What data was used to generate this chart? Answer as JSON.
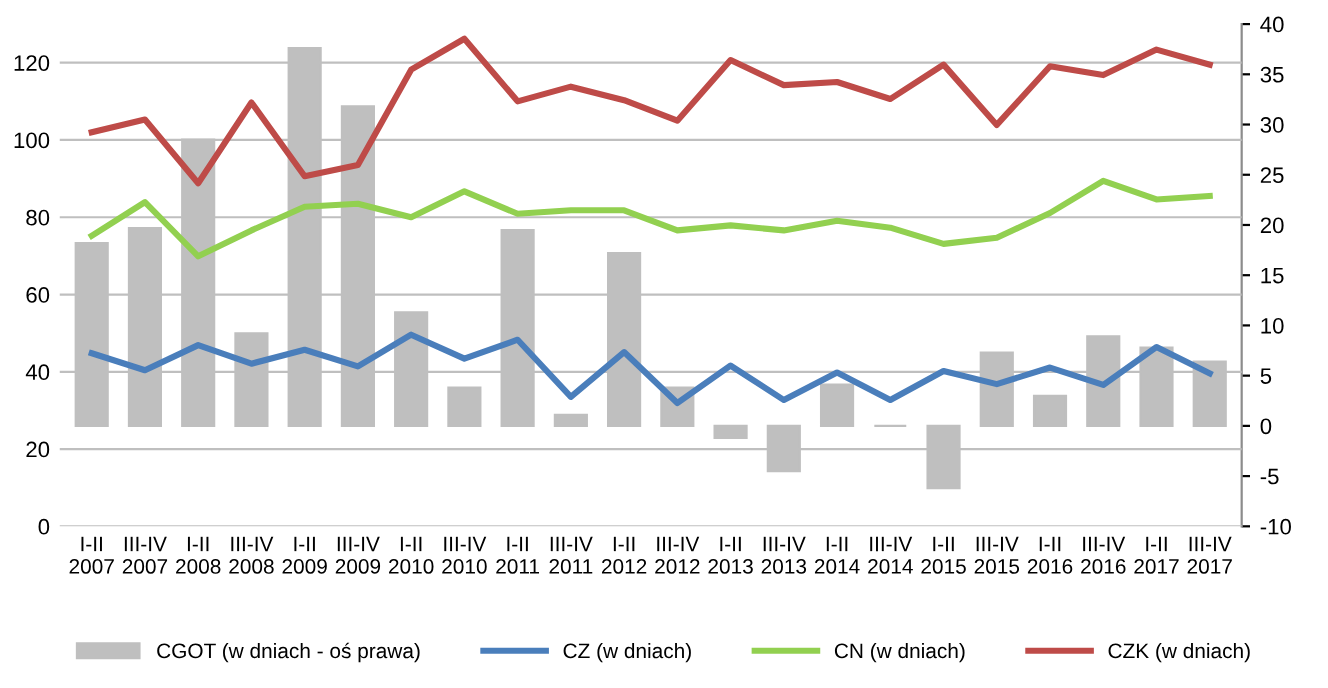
{
  "chart_data": {
    "type": "line",
    "categories": [
      "I-II\n2007",
      "III-IV\n2007",
      "I-II\n2008",
      "III-IV\n2008",
      "I-II\n2009",
      "III-IV\n2009",
      "I-II\n2010",
      "III-IV\n2010",
      "I-II\n2011",
      "III-IV\n2011",
      "I-II\n2012",
      "III-IV\n2012",
      "I-II\n2013",
      "III-IV\n2013",
      "I-II\n2014",
      "III-IV\n2014",
      "I-II\n2015",
      "III-IV\n2015",
      "I-II\n2016",
      "III-IV\n2016",
      "I-II\n2017",
      "III-IV\n2017"
    ],
    "series": [
      {
        "name": "CGOT (w dniach - oś prawa)",
        "type": "bar",
        "axis": "y2",
        "color": "#bfbfbf",
        "values": [
          18.2,
          19.7,
          28.5,
          9.2,
          37.6,
          31.8,
          11.3,
          3.8,
          19.5,
          1.1,
          17.2,
          3.8,
          -1.2,
          -4.5,
          4.1,
          0,
          -6.2,
          7.3,
          3.0,
          8.9,
          7.8,
          6.4
        ]
      },
      {
        "name": "CZ (w dniach)",
        "color": "#4a7ebb",
        "values": [
          44.8,
          40.4,
          46.9,
          42.1,
          45.7,
          41.4,
          49.6,
          43.4,
          48.3,
          33.5,
          45.1,
          31.9,
          41.6,
          32.7,
          39.8,
          32.7,
          40.2,
          36.8,
          41.1,
          36.6,
          46.4,
          39.6
        ]
      },
      {
        "name": "CN (w dniach)",
        "color": "#92d050",
        "values": [
          75.2,
          83.9,
          69.9,
          76.6,
          82.7,
          83.5,
          80,
          86.7,
          80.9,
          81.8,
          81.8,
          76.6,
          77.9,
          76.6,
          79.1,
          77.3,
          73.1,
          74.7,
          81.1,
          89.4,
          84.6,
          85.5
        ]
      },
      {
        "name": "CZK (w dniach)",
        "color": "#be4b48",
        "values": [
          102,
          105.3,
          88.8,
          109.7,
          90.6,
          93.5,
          118.2,
          126.2,
          110,
          113.8,
          110.3,
          105,
          120.7,
          114.2,
          115,
          110.6,
          119.5,
          103.9,
          119.1,
          116.8,
          123.4,
          119.5
        ]
      }
    ],
    "ylim": [
      0,
      130
    ],
    "yticks": [
      0,
      20,
      40,
      60,
      80,
      100,
      120
    ],
    "y2lim": [
      -10,
      40
    ],
    "y2ticks": [
      -10,
      -5,
      0,
      5,
      10,
      15,
      20,
      25,
      30,
      35,
      40
    ],
    "grid": "y",
    "legend": "bottom",
    "marker": "none",
    "line_style": "solid"
  }
}
